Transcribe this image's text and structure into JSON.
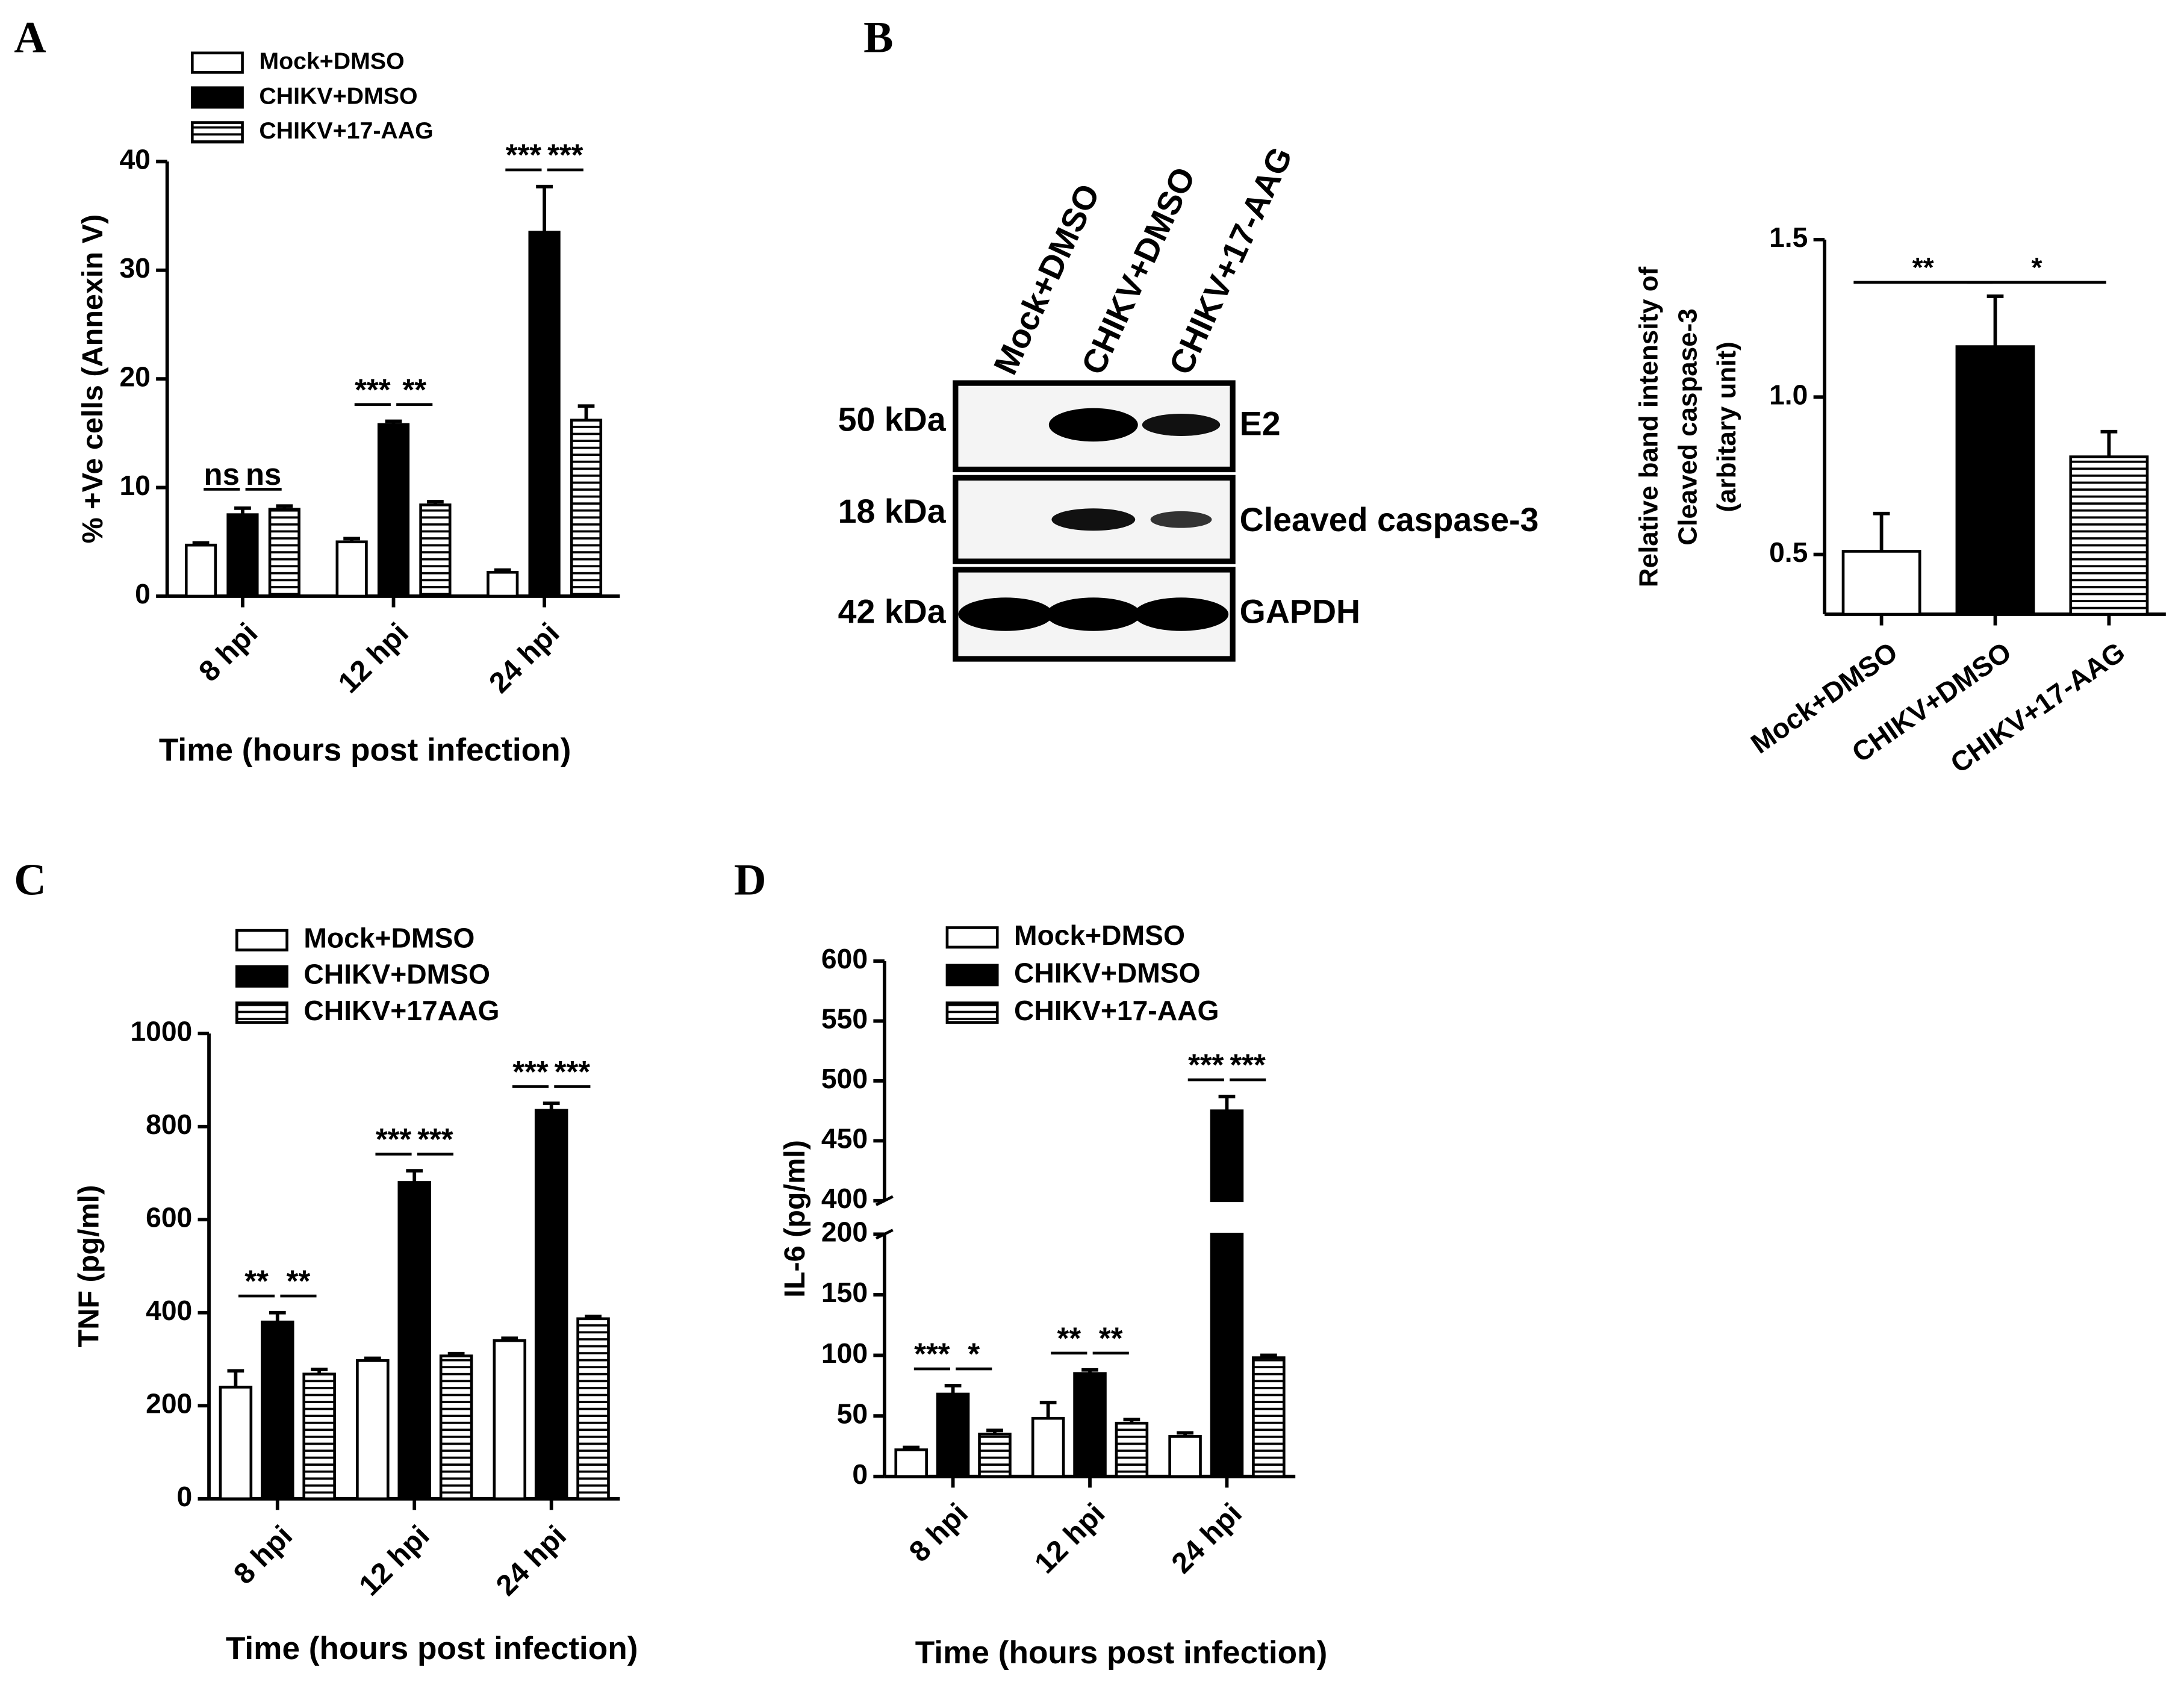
{
  "chart_data": [
    {
      "panel": "A",
      "type": "bar",
      "categories": [
        "8 hpi",
        "12 hpi",
        "24 hpi"
      ],
      "xlabel": "Time (hours post infection)",
      "ylabel": "% +Ve cells (Annexin V)",
      "ylim": [
        0,
        40
      ],
      "yticks": [
        0,
        10,
        20,
        30,
        40
      ],
      "series": [
        {
          "name": "Mock+DMSO",
          "fill": "white",
          "values": [
            4.7,
            5.0,
            2.2
          ],
          "errors": [
            0.2,
            0.3,
            0.2
          ]
        },
        {
          "name": "CHIKV+DMSO",
          "fill": "black",
          "values": [
            7.5,
            15.8,
            33.5
          ],
          "errors": [
            0.6,
            0.3,
            4.2
          ]
        },
        {
          "name": "CHIKV+17-AAG",
          "fill": "striped",
          "values": [
            8.0,
            8.4,
            16.2
          ],
          "errors": [
            0.3,
            0.3,
            1.3
          ]
        }
      ],
      "annotations": [
        [
          "ns",
          "ns"
        ],
        [
          "***",
          "**"
        ],
        [
          "***",
          "***"
        ]
      ]
    },
    {
      "type": "bar",
      "categories": [
        "Mock+DMSO",
        "CHIKV+DMSO",
        "CHIKV+17-AAG"
      ],
      "values": [
        0.51,
        1.16,
        0.81
      ],
      "errors": [
        0.12,
        0.16,
        0.08
      ],
      "fills": [
        "white",
        "black",
        "striped"
      ],
      "ylabel": [
        "Relative band intensity of",
        "Cleaved caspase-3",
        "(arbitary unit)"
      ],
      "ylim": [
        0.31,
        1.5
      ],
      "yticks": [
        0.5,
        {
          "value": 1,
          "label": "1.0"
        },
        1.5
      ],
      "annotations": [
        "**",
        "*"
      ]
    },
    {
      "panel": "C",
      "type": "bar",
      "categories": [
        "8 hpi",
        "12 hpi",
        "24 hpi"
      ],
      "xlabel": "Time (hours post infection)",
      "ylabel": "TNF (pg/ml)",
      "ylim": [
        0,
        1000
      ],
      "yticks": [
        0,
        200,
        400,
        600,
        800,
        1000
      ],
      "series": [
        {
          "name": "Mock+DMSO",
          "fill": "white",
          "values": [
            240,
            297,
            340
          ],
          "errors": [
            35,
            5,
            5
          ]
        },
        {
          "name": "CHIKV+DMSO",
          "fill": "black",
          "values": [
            380,
            680,
            835
          ],
          "errors": [
            20,
            25,
            15
          ]
        },
        {
          "name": "CHIKV+17AAG",
          "fill": "striped",
          "values": [
            268,
            307,
            387
          ],
          "errors": [
            10,
            5,
            5
          ]
        }
      ],
      "annotations": [
        [
          "**",
          "**"
        ],
        [
          "***",
          "***"
        ],
        [
          "***",
          "***"
        ]
      ]
    },
    {
      "panel": "D",
      "type": "bar",
      "categories": [
        "8 hpi",
        "12 hpi",
        "24 hpi"
      ],
      "xlabel": "Time (hours post infection)",
      "ylabel": "IL-6 (pg/ml)",
      "ylim": [
        0,
        600
      ],
      "ybreak": [
        200,
        400
      ],
      "yticks": [
        0,
        50,
        100,
        150,
        200,
        400,
        450,
        500,
        550,
        600
      ],
      "series": [
        {
          "name": "Mock+DMSO",
          "fill": "white",
          "values": [
            22,
            48,
            33
          ],
          "errors": [
            2,
            13,
            3
          ]
        },
        {
          "name": "CHIKV+DMSO",
          "fill": "black",
          "values": [
            68,
            85,
            475
          ],
          "errors": [
            7,
            3,
            12
          ]
        },
        {
          "name": "CHIKV+17-AAG",
          "fill": "striped",
          "values": [
            35,
            44,
            98
          ],
          "errors": [
            3,
            3,
            2
          ]
        }
      ],
      "annotations": [
        [
          "***",
          "*"
        ],
        [
          "**",
          "**"
        ],
        [
          "***",
          "***"
        ]
      ]
    }
  ],
  "blot": {
    "panel": "B",
    "lanes": [
      "Mock+DMSO",
      "CHIKV+DMSO",
      "CHIKV+17-AAG"
    ],
    "rows": [
      {
        "size": "50 kDa",
        "name": "E2"
      },
      {
        "size": "18 kDa",
        "name": "Cleaved caspase-3"
      },
      {
        "size": "42 kDa",
        "name": "GAPDH"
      }
    ]
  }
}
